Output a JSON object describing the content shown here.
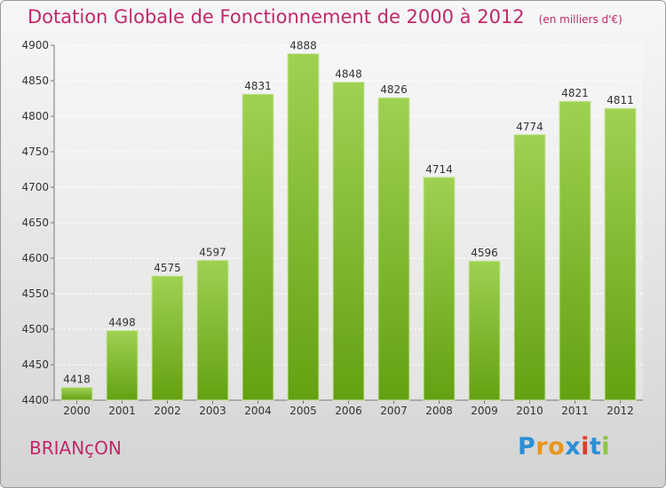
{
  "title": "Dotation Globale de Fonctionnement de 2000 à 2012",
  "unit_label": "(en milliers d'€)",
  "commune": "BRIANçON",
  "logo": {
    "letters": [
      "P",
      "r",
      "o",
      "x",
      "i",
      "t",
      "i"
    ],
    "colors": [
      "#2b8fd6",
      "#e8961e",
      "#e8961e",
      "#2b8fd6",
      "#e23a2e",
      "#2b8fd6",
      "#8dc63f"
    ]
  },
  "colors": {
    "bar_top": "#9fd152",
    "bar_bottom": "#64a112",
    "title": "#c0286b"
  },
  "chart_data": {
    "type": "bar",
    "title": "Dotation Globale de Fonctionnement de 2000 à 2012",
    "categories": [
      "2000",
      "2001",
      "2002",
      "2003",
      "2004",
      "2005",
      "2006",
      "2007",
      "2008",
      "2009",
      "2010",
      "2011",
      "2012"
    ],
    "values": [
      4418,
      4498,
      4575,
      4597,
      4831,
      4888,
      4848,
      4826,
      4714,
      4596,
      4774,
      4821,
      4811
    ],
    "ylim": [
      4400,
      4900
    ],
    "yticks": [
      4400,
      4450,
      4500,
      4550,
      4600,
      4650,
      4700,
      4750,
      4800,
      4850,
      4900
    ],
    "grid": true,
    "data_labels": true
  }
}
